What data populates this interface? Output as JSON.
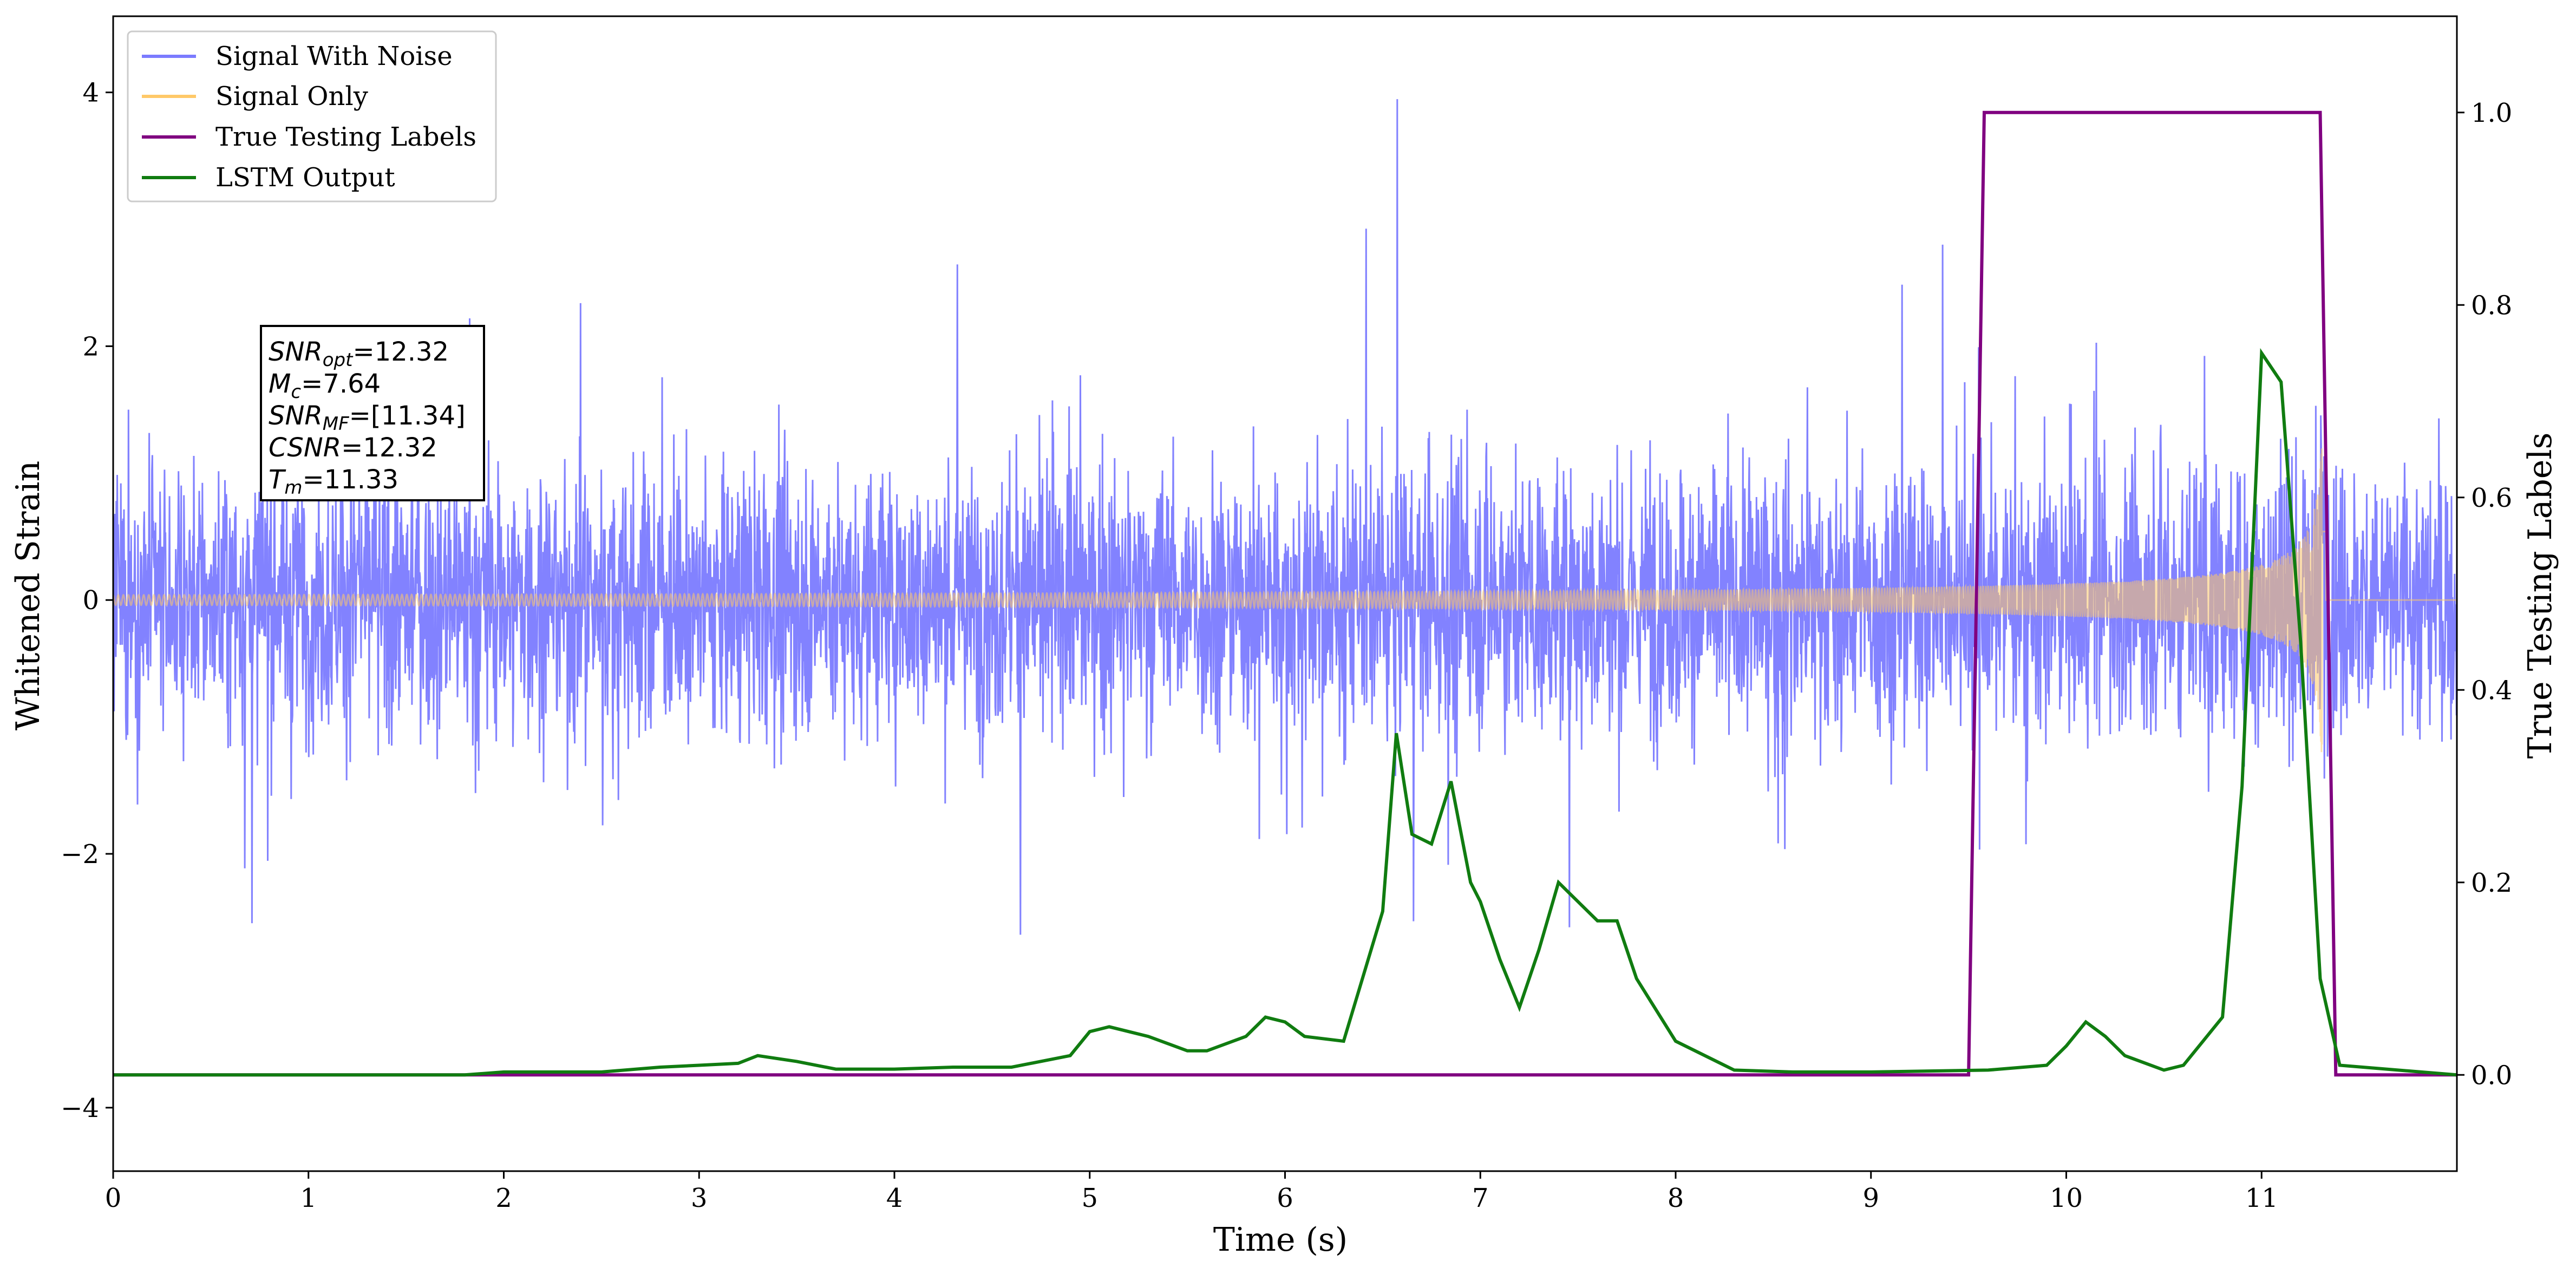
{
  "chart_data": {
    "type": "line",
    "xlabel": "Time (s)",
    "ylabel_left": "Whitened Strain",
    "ylabel_right": "True Testing Labels",
    "xlim": [
      0,
      12.0
    ],
    "ylim_left": [
      -4.5,
      4.6
    ],
    "ylim_right": [
      -0.1,
      1.1
    ],
    "x_ticks": [
      0,
      1,
      2,
      3,
      4,
      5,
      6,
      7,
      8,
      9,
      10,
      11
    ],
    "y_ticks_left": [
      -4,
      -2,
      0,
      2,
      4
    ],
    "y_ticks_right": [
      0.0,
      0.2,
      0.4,
      0.6,
      0.8,
      1.0
    ],
    "grid": false,
    "legend_position": "top-left",
    "series": [
      {
        "name": "Signal With Noise",
        "axis": "left",
        "color": "#7b7bff",
        "style": "dense noise, typical amplitude ~1.5, peaks to about +4.2 / -4.0"
      },
      {
        "name": "Signal Only",
        "axis": "left",
        "color": "#ffc968",
        "chirp": {
          "start": 0.0,
          "merger": 11.33,
          "initial_amplitude": 0.04,
          "final_amplitude": 1.2
        }
      },
      {
        "name": "True Testing Labels",
        "axis": "right",
        "color": "#800080",
        "x": [
          0,
          9.5,
          9.58,
          11.3,
          11.38,
          12.0
        ],
        "y": [
          0,
          0,
          1.0,
          1.0,
          0,
          0
        ]
      },
      {
        "name": "LSTM Output",
        "axis": "right",
        "color": "#107c10",
        "x": [
          0,
          1.8,
          2.0,
          2.5,
          2.8,
          3.0,
          3.2,
          3.3,
          3.5,
          3.7,
          4.0,
          4.3,
          4.6,
          4.9,
          5.0,
          5.1,
          5.2,
          5.3,
          5.5,
          5.6,
          5.8,
          5.9,
          6.0,
          6.1,
          6.3,
          6.5,
          6.57,
          6.65,
          6.75,
          6.85,
          6.95,
          7.0,
          7.1,
          7.2,
          7.3,
          7.4,
          7.5,
          7.6,
          7.7,
          7.8,
          8.0,
          8.3,
          8.6,
          9.0,
          9.3,
          9.6,
          9.9,
          10.0,
          10.1,
          10.2,
          10.3,
          10.5,
          10.6,
          10.8,
          10.9,
          11.0,
          11.1,
          11.2,
          11.3,
          11.4,
          12.0
        ],
        "y": [
          0,
          0,
          0.003,
          0.003,
          0.008,
          0.01,
          0.012,
          0.02,
          0.014,
          0.006,
          0.006,
          0.008,
          0.008,
          0.02,
          0.045,
          0.05,
          0.045,
          0.04,
          0.025,
          0.025,
          0.04,
          0.06,
          0.055,
          0.04,
          0.035,
          0.17,
          0.355,
          0.25,
          0.24,
          0.305,
          0.2,
          0.18,
          0.12,
          0.07,
          0.13,
          0.2,
          0.18,
          0.16,
          0.16,
          0.1,
          0.035,
          0.005,
          0.003,
          0.003,
          0.004,
          0.005,
          0.01,
          0.03,
          0.055,
          0.04,
          0.02,
          0.005,
          0.01,
          0.06,
          0.3,
          0.75,
          0.72,
          0.45,
          0.1,
          0.01,
          0.0
        ]
      }
    ],
    "annotation_box": {
      "lines": [
        {
          "base": "SNR",
          "sub": "opt",
          "value": "=12.32"
        },
        {
          "base": "M",
          "sub": "c",
          "value": "=7.64"
        },
        {
          "base": "SNR",
          "sub": "MF",
          "value": "=[11.34]"
        },
        {
          "base": "CSNR",
          "sub": "",
          "value": "=12.32"
        },
        {
          "base": "T",
          "sub": "m",
          "value": "=11.33"
        }
      ]
    }
  }
}
